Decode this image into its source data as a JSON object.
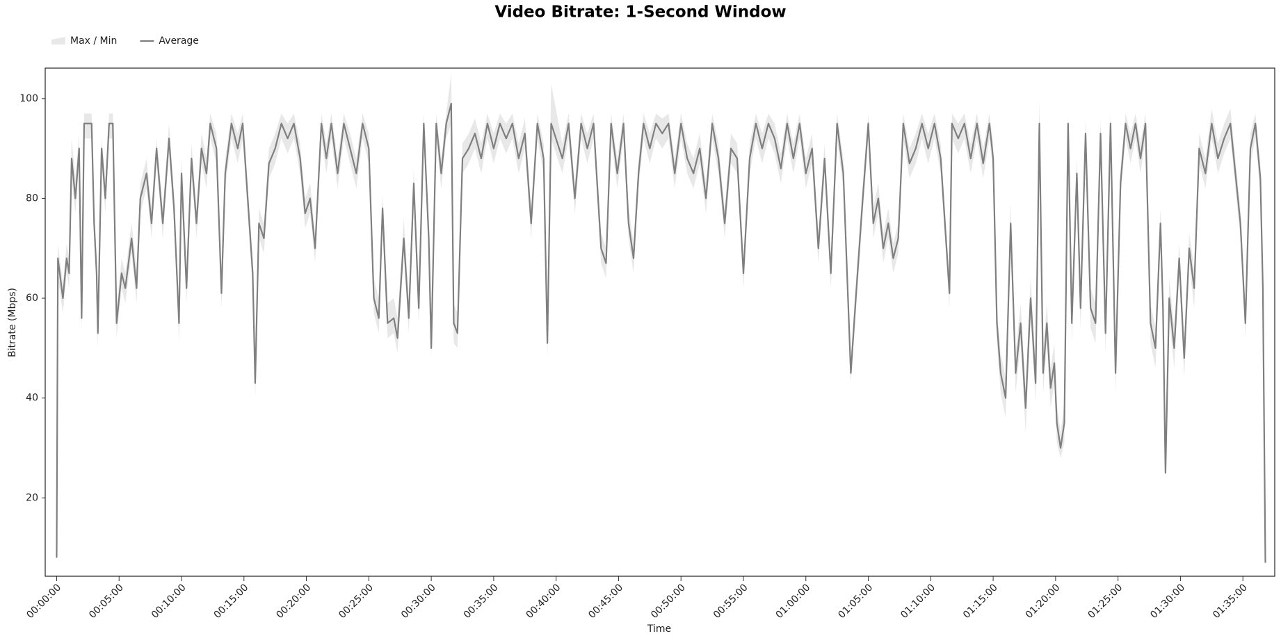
{
  "chart_data": {
    "type": "line",
    "title": "Video Bitrate: 1-Second Window",
    "x_label": "Time",
    "y_label": "Bitrate (Mbps)",
    "legend": "top-left",
    "grid": false,
    "xlim": [
      -55,
      5853
    ],
    "ylim": [
      4.3,
      106.1
    ],
    "xticks": [
      {
        "value": 0,
        "label": "00:00:00"
      },
      {
        "value": 300,
        "label": "00:05:00"
      },
      {
        "value": 600,
        "label": "00:10:00"
      },
      {
        "value": 900,
        "label": "00:15:00"
      },
      {
        "value": 1200,
        "label": "00:20:00"
      },
      {
        "value": 1500,
        "label": "00:25:00"
      },
      {
        "value": 1800,
        "label": "00:30:00"
      },
      {
        "value": 2100,
        "label": "00:35:00"
      },
      {
        "value": 2400,
        "label": "00:40:00"
      },
      {
        "value": 2700,
        "label": "00:45:00"
      },
      {
        "value": 3000,
        "label": "00:50:00"
      },
      {
        "value": 3300,
        "label": "00:55:00"
      },
      {
        "value": 3600,
        "label": "01:00:00"
      },
      {
        "value": 3900,
        "label": "01:05:00"
      },
      {
        "value": 4200,
        "label": "01:10:00"
      },
      {
        "value": 4500,
        "label": "01:15:00"
      },
      {
        "value": 4800,
        "label": "01:20:00"
      },
      {
        "value": 5100,
        "label": "01:25:00"
      },
      {
        "value": 5400,
        "label": "01:30:00"
      },
      {
        "value": 5700,
        "label": "01:35:00"
      }
    ],
    "yticks": [
      20,
      40,
      60,
      80,
      100
    ],
    "x": [
      0,
      6,
      30,
      48,
      60,
      72,
      90,
      108,
      120,
      132,
      168,
      180,
      192,
      198,
      216,
      234,
      252,
      270,
      288,
      312,
      330,
      360,
      384,
      402,
      432,
      456,
      480,
      510,
      540,
      564,
      588,
      600,
      624,
      648,
      672,
      696,
      720,
      738,
      768,
      792,
      810,
      840,
      870,
      894,
      918,
      942,
      954,
      972,
      996,
      1020,
      1050,
      1080,
      1110,
      1140,
      1170,
      1194,
      1218,
      1242,
      1272,
      1296,
      1320,
      1350,
      1380,
      1410,
      1440,
      1470,
      1500,
      1524,
      1548,
      1566,
      1590,
      1620,
      1638,
      1668,
      1692,
      1716,
      1740,
      1764,
      1788,
      1800,
      1824,
      1848,
      1872,
      1896,
      1908,
      1926,
      1950,
      1980,
      2010,
      2040,
      2070,
      2100,
      2130,
      2160,
      2190,
      2220,
      2250,
      2280,
      2310,
      2340,
      2358,
      2376,
      2430,
      2460,
      2490,
      2520,
      2550,
      2580,
      2616,
      2640,
      2664,
      2694,
      2724,
      2748,
      2772,
      2796,
      2820,
      2850,
      2880,
      2910,
      2940,
      2970,
      3000,
      3030,
      3060,
      3090,
      3120,
      3150,
      3180,
      3210,
      3240,
      3270,
      3300,
      3330,
      3360,
      3390,
      3420,
      3450,
      3480,
      3510,
      3540,
      3570,
      3600,
      3630,
      3660,
      3690,
      3720,
      3750,
      3780,
      3798,
      3816,
      3840,
      3870,
      3900,
      3924,
      3948,
      3972,
      3996,
      4020,
      4044,
      4068,
      4098,
      4128,
      4158,
      4188,
      4218,
      4248,
      4290,
      4302,
      4332,
      4362,
      4392,
      4422,
      4452,
      4482,
      4500,
      4518,
      4536,
      4560,
      4584,
      4608,
      4632,
      4656,
      4680,
      4704,
      4722,
      4740,
      4758,
      4776,
      4794,
      4806,
      4824,
      4842,
      4860,
      4878,
      4902,
      4920,
      4944,
      4968,
      4992,
      5016,
      5040,
      5064,
      5088,
      5112,
      5136,
      5160,
      5184,
      5208,
      5232,
      5256,
      5280,
      5304,
      5316,
      5328,
      5346,
      5370,
      5394,
      5418,
      5442,
      5466,
      5490,
      5520,
      5550,
      5580,
      5610,
      5640,
      5664,
      5688,
      5712,
      5736,
      5760,
      5784,
      5796,
      5808
    ],
    "series": [
      {
        "name": "Max / Min",
        "color": "#e8e8e8",
        "upper": [
          10,
          71,
          63,
          71,
          68,
          92,
          84,
          93,
          59,
          97,
          97,
          78,
          69,
          56,
          92,
          84,
          97,
          97,
          58,
          68,
          65,
          75,
          66,
          83,
          88,
          78,
          92,
          78,
          95,
          81,
          58,
          88,
          66,
          91,
          78,
          93,
          88,
          97,
          93,
          64,
          88,
          97,
          93,
          97,
          83,
          68,
          46,
          78,
          75,
          90,
          93,
          97,
          95,
          97,
          91,
          80,
          83,
          73,
          97,
          91,
          97,
          88,
          97,
          93,
          88,
          97,
          93,
          64,
          60,
          81,
          59,
          60,
          56,
          76,
          60,
          86,
          62,
          97,
          76,
          54,
          97,
          88,
          97,
          105,
          59,
          57,
          91,
          93,
          96,
          91,
          97,
          93,
          97,
          95,
          97,
          91,
          96,
          78,
          97,
          91,
          54,
          103,
          91,
          97,
          83,
          97,
          93,
          97,
          73,
          70,
          97,
          88,
          97,
          78,
          71,
          88,
          97,
          93,
          97,
          96,
          97,
          88,
          97,
          91,
          88,
          93,
          83,
          97,
          91,
          78,
          93,
          91,
          68,
          91,
          97,
          93,
          97,
          95,
          89,
          97,
          91,
          97,
          88,
          93,
          73,
          91,
          68,
          97,
          88,
          68,
          48,
          63,
          81,
          97,
          78,
          83,
          73,
          78,
          71,
          75,
          97,
          90,
          93,
          97,
          93,
          97,
          91,
          64,
          97,
          95,
          97,
          91,
          97,
          90,
          97,
          91,
          58,
          49,
          44,
          79,
          49,
          59,
          42,
          64,
          47,
          100,
          49,
          59,
          46,
          51,
          39,
          33,
          39,
          97,
          59,
          88,
          62,
          96,
          62,
          59,
          96,
          57,
          97,
          49,
          86,
          97,
          93,
          97,
          91,
          97,
          59,
          54,
          78,
          62,
          28,
          64,
          54,
          71,
          52,
          73,
          66,
          93,
          88,
          98,
          91,
          95,
          98,
          88,
          78,
          58,
          93,
          97,
          87,
          66,
          10
        ],
        "lower": [
          6,
          64,
          57,
          65,
          62,
          84,
          77,
          87,
          53,
          92,
          92,
          72,
          62,
          50,
          87,
          77,
          92,
          92,
          52,
          62,
          59,
          69,
          59,
          77,
          82,
          72,
          87,
          72,
          89,
          75,
          51,
          82,
          59,
          85,
          72,
          87,
          82,
          92,
          87,
          58,
          82,
          92,
          87,
          92,
          77,
          62,
          40,
          72,
          69,
          84,
          87,
          92,
          89,
          92,
          85,
          74,
          77,
          67,
          92,
          85,
          92,
          82,
          92,
          87,
          82,
          92,
          87,
          57,
          53,
          75,
          52,
          53,
          49,
          69,
          53,
          80,
          55,
          92,
          69,
          48,
          92,
          82,
          92,
          95,
          51,
          50,
          85,
          87,
          90,
          85,
          92,
          87,
          92,
          89,
          92,
          85,
          90,
          72,
          92,
          85,
          48,
          92,
          85,
          92,
          77,
          92,
          87,
          92,
          67,
          64,
          92,
          82,
          92,
          72,
          65,
          82,
          92,
          87,
          92,
          90,
          92,
          82,
          92,
          85,
          82,
          87,
          77,
          92,
          85,
          72,
          87,
          85,
          62,
          85,
          92,
          87,
          92,
          89,
          83,
          92,
          85,
          92,
          82,
          87,
          67,
          85,
          62,
          92,
          82,
          62,
          43,
          57,
          75,
          92,
          72,
          77,
          67,
          72,
          65,
          69,
          92,
          84,
          87,
          92,
          87,
          92,
          85,
          58,
          92,
          89,
          92,
          85,
          92,
          84,
          92,
          85,
          51,
          41,
          36,
          72,
          41,
          51,
          33,
          56,
          39,
          92,
          41,
          51,
          38,
          43,
          31,
          28,
          31,
          92,
          51,
          82,
          54,
          90,
          54,
          51,
          90,
          49,
          92,
          41,
          80,
          92,
          87,
          92,
          85,
          92,
          51,
          46,
          72,
          54,
          24,
          56,
          46,
          65,
          44,
          67,
          58,
          87,
          82,
          92,
          85,
          89,
          92,
          82,
          72,
          52,
          87,
          92,
          81,
          58,
          5
        ]
      },
      {
        "name": "Average",
        "color": "#7f7f7f",
        "values": [
          8,
          68,
          60,
          68,
          65,
          88,
          80,
          90,
          56,
          95,
          95,
          75,
          65,
          53,
          90,
          80,
          95,
          95,
          55,
          65,
          62,
          72,
          62,
          80,
          85,
          75,
          90,
          75,
          92,
          78,
          55,
          85,
          62,
          88,
          75,
          90,
          85,
          95,
          90,
          61,
          85,
          95,
          90,
          95,
          80,
          65,
          43,
          75,
          72,
          87,
          90,
          95,
          92,
          95,
          88,
          77,
          80,
          70,
          95,
          88,
          95,
          85,
          95,
          90,
          85,
          95,
          90,
          60,
          56,
          78,
          55,
          56,
          52,
          72,
          56,
          83,
          58,
          95,
          72,
          50,
          95,
          85,
          95,
          99,
          55,
          53,
          88,
          90,
          93,
          88,
          95,
          90,
          95,
          92,
          95,
          88,
          93,
          75,
          95,
          88,
          51,
          95,
          88,
          95,
          80,
          95,
          90,
          95,
          70,
          67,
          95,
          85,
          95,
          75,
          68,
          85,
          95,
          90,
          95,
          93,
          95,
          85,
          95,
          88,
          85,
          90,
          80,
          95,
          88,
          75,
          90,
          88,
          65,
          88,
          95,
          90,
          95,
          92,
          86,
          95,
          88,
          95,
          85,
          90,
          70,
          88,
          65,
          95,
          85,
          65,
          45,
          60,
          78,
          95,
          75,
          80,
          70,
          75,
          68,
          72,
          95,
          87,
          90,
          95,
          90,
          95,
          88,
          61,
          95,
          92,
          95,
          88,
          95,
          87,
          95,
          88,
          55,
          45,
          40,
          75,
          45,
          55,
          38,
          60,
          43,
          95,
          45,
          55,
          42,
          47,
          35,
          30,
          35,
          95,
          55,
          85,
          58,
          93,
          58,
          55,
          93,
          53,
          95,
          45,
          83,
          95,
          90,
          95,
          88,
          95,
          55,
          50,
          75,
          58,
          25,
          60,
          50,
          68,
          48,
          70,
          62,
          90,
          85,
          95,
          88,
          92,
          95,
          85,
          75,
          55,
          90,
          95,
          84,
          62,
          7
        ]
      }
    ]
  }
}
